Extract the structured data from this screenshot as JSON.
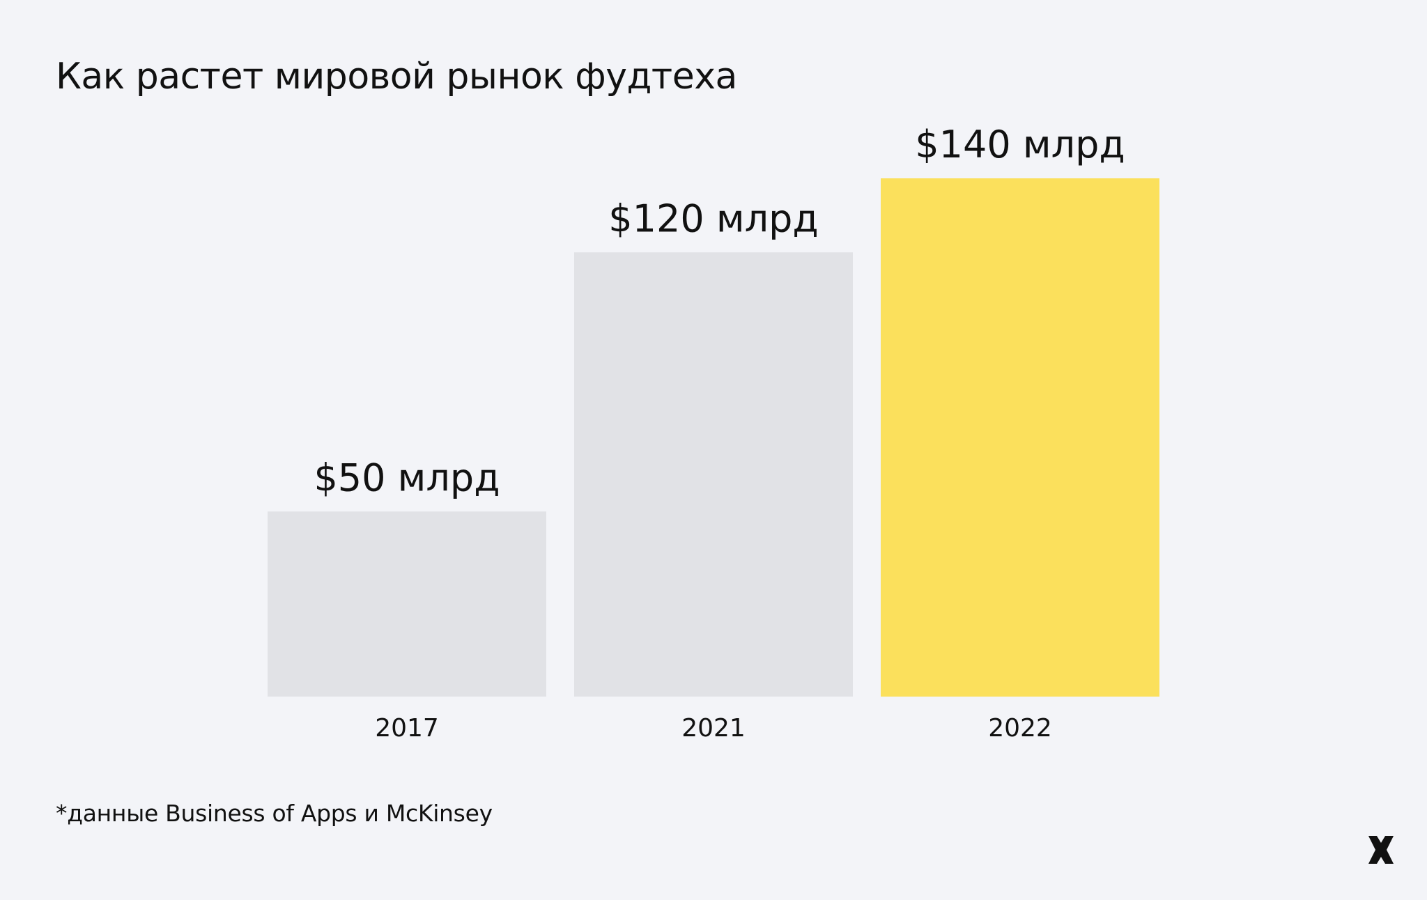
{
  "chart_data": {
    "type": "bar",
    "title": "Как растет мировой рынок фудтеха",
    "categories": [
      "2017",
      "2021",
      "2022"
    ],
    "values": [
      50,
      120,
      140
    ],
    "unit": "млрд $",
    "data_labels": [
      "$50 млрд",
      "$120 млрд",
      "$140 млрд"
    ],
    "ylim": [
      0,
      140
    ],
    "bar_colors": [
      "#e1e2e6",
      "#e1e2e6",
      "#fbe05c"
    ],
    "grid": false,
    "legend": "none",
    "xlabel": "",
    "ylabel": ""
  },
  "footnote": "*данные Business of Apps и McKinsey",
  "logo": {
    "icon": "x-logo-icon",
    "color": "#111111"
  },
  "colors": {
    "background": "#f3f4f8",
    "text": "#111111"
  }
}
